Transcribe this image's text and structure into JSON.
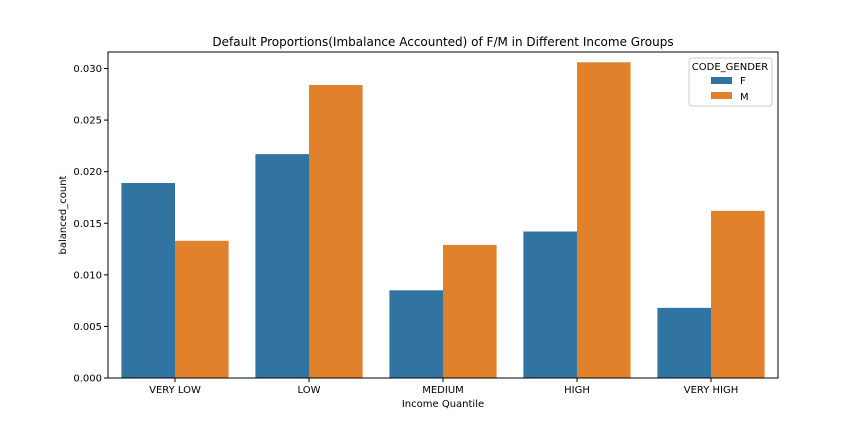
{
  "chart_data": {
    "type": "bar",
    "title": "Default Proportions(Imbalance Accounted) of F/M in Different Income Groups",
    "xlabel": "Income Quantile",
    "ylabel": "balanced_count",
    "categories": [
      "VERY LOW",
      "LOW",
      "MEDIUM",
      "HIGH",
      "VERY HIGH"
    ],
    "series": [
      {
        "name": "F",
        "color": "#3274a1",
        "values": [
          0.0189,
          0.0217,
          0.0085,
          0.0142,
          0.0068
        ]
      },
      {
        "name": "M",
        "color": "#e1812c",
        "values": [
          0.0133,
          0.0284,
          0.0129,
          0.0306,
          0.0162
        ]
      }
    ],
    "ylim": [
      0,
      0.0316
    ],
    "yticks": [
      0,
      0.005,
      0.01,
      0.015,
      0.02,
      0.025,
      0.03
    ],
    "ytick_labels": [
      "0.000",
      "0.005",
      "0.010",
      "0.015",
      "0.020",
      "0.025",
      "0.030"
    ],
    "grid": false,
    "legend": {
      "title": "CODE_GENDER",
      "placement": "top-right"
    }
  }
}
